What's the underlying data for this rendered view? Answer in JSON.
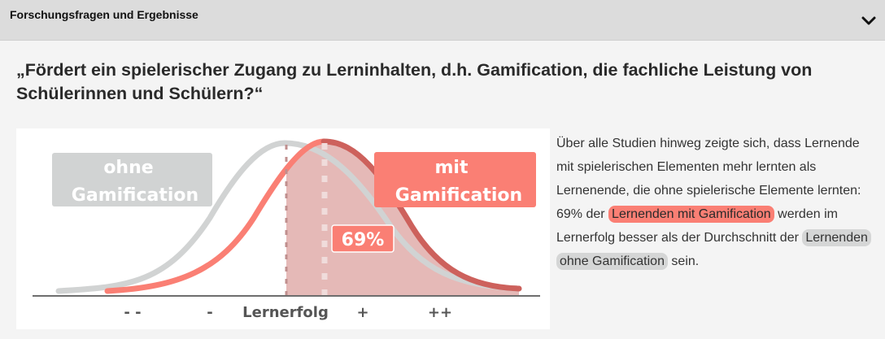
{
  "header": {
    "title": "Forschungsfragen und Ergebnisse",
    "toggle_icon": "chevron-down-icon"
  },
  "question": "„Fördert ein spielerischer Zugang zu Lerninhalten, d.h. Gamification, die fachliche Leistung von Schülerinnen und Schülern?“",
  "figure": {
    "label_without_line1": "ohne",
    "label_without_line2": "Gamification",
    "label_with_line1": "mit",
    "label_with_line2": "Gamification",
    "percent_badge": "69%",
    "axis_label": "Lernerfolg",
    "tick_very_low": "- -",
    "tick_low": "-",
    "tick_high": "+",
    "tick_very_high": "++",
    "share_above_mean": 0.69,
    "colors": {
      "without": "#d1d3d3",
      "with": "#fa7f74",
      "with_dark": "#cd615c",
      "shaded_area": "#e5b9b7"
    }
  },
  "result": {
    "part1": "Über alle Studien hinweg zeigte sich, dass Lernende mit spielerischen Elementen mehr lernten als Lernenende, die ohne spielerische Elemente lernten: 69% der ",
    "highlight_with": "Lernenden mit Gamification",
    "part2": " werden im Lernerfolg besser als der Durchschnitt der ",
    "highlight_without": "Lernenden ohne Gamification",
    "part3": " sein."
  }
}
